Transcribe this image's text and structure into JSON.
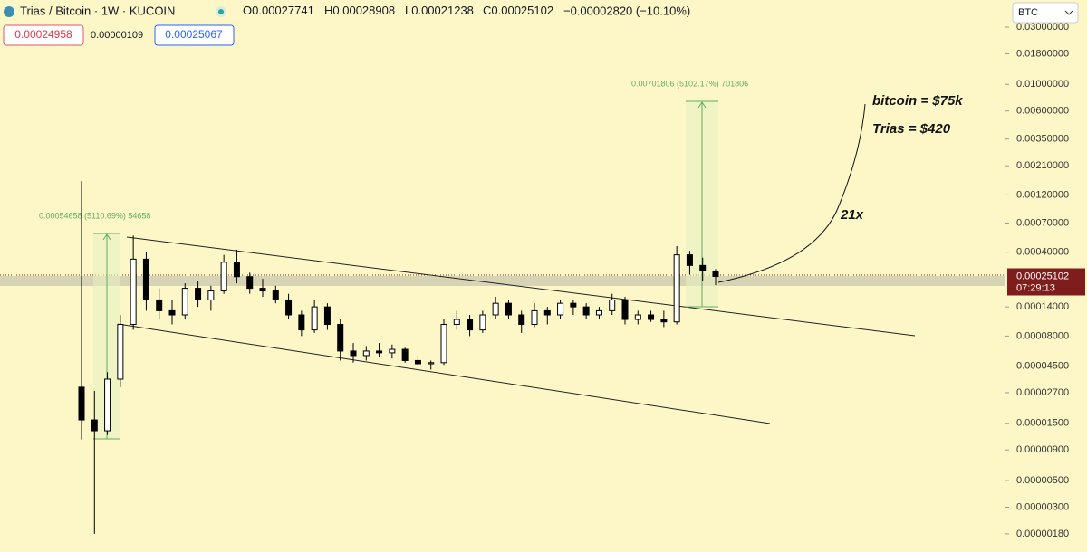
{
  "header": {
    "title": "Trias / Bitcoin · 1W · KUCOIN",
    "ohlc_labels": [
      "O",
      "H",
      "L",
      "C"
    ],
    "change": "−0.00002820 (−10.10%)",
    "bid": "0.00024958",
    "spread": "0.00000109",
    "ask": "0.00025067",
    "currency": "BTC"
  },
  "chart_data": {
    "type": "candlestick",
    "log_scale": true,
    "ylim": [
      1.27e-06,
      0.0505
    ],
    "yticks": [
      {
        "value": 0.03,
        "label": "0.03000000"
      },
      {
        "value": 0.018,
        "label": "0.01800000"
      },
      {
        "value": 0.01,
        "label": "0.01000000"
      },
      {
        "value": 0.006,
        "label": "0.00600000"
      },
      {
        "value": 0.0035,
        "label": "0.00350000"
      },
      {
        "value": 0.0021,
        "label": "0.00210000"
      },
      {
        "value": 0.0012,
        "label": "0.00120000"
      },
      {
        "value": 0.0007,
        "label": "0.00070000"
      },
      {
        "value": 0.0004,
        "label": "0.00040000"
      },
      {
        "value": 0.00014,
        "label": "0.00014000"
      },
      {
        "value": 8e-05,
        "label": "0.00008000"
      },
      {
        "value": 4.5e-05,
        "label": "0.00004500"
      },
      {
        "value": 2.7e-05,
        "label": "0.00002700"
      },
      {
        "value": 1.5e-05,
        "label": "0.00001500"
      },
      {
        "value": 9e-06,
        "label": "0.00000900"
      },
      {
        "value": 5e-06,
        "label": "0.00000500"
      },
      {
        "value": 3e-06,
        "label": "0.00000300"
      },
      {
        "value": 1.8e-06,
        "label": "0.00000180"
      }
    ],
    "open": [
      3e-05,
      1.6e-05,
      1.3e-05,
      3.5e-05,
      0.0001,
      0.00035,
      0.00016,
      0.00013,
      0.00012,
      0.0002,
      0.00016,
      0.00019,
      0.00033,
      0.00025,
      0.0002,
      0.00019,
      0.00016,
      0.00012,
      9e-05,
      0.00014,
      0.0001,
      6e-05,
      5.5e-05,
      6e-05,
      5.8e-05,
      6.2e-05,
      5e-05,
      4.7e-05,
      4.8e-05,
      0.0001,
      0.00011,
      9e-05,
      0.00012,
      0.00015,
      0.00012,
      0.0001,
      0.00013,
      0.00012,
      0.00015,
      0.00014,
      0.00012,
      0.00013,
      0.00016,
      0.00011,
      0.00012,
      0.00011,
      0.000105,
      0.00038,
      0.00031,
      0.00027741
    ],
    "high": [
      0.00156,
      2.8e-05,
      4e-05,
      0.00012,
      0.00055,
      0.0004,
      0.0002,
      0.00016,
      0.00022,
      0.00023,
      0.00021,
      0.00038,
      0.00042,
      0.00027,
      0.00024,
      0.00021,
      0.00018,
      0.00013,
      0.00016,
      0.00015,
      0.00011,
      7e-05,
      6.6e-05,
      7e-05,
      6.8e-05,
      6.4e-05,
      5.5e-05,
      5e-05,
      0.00011,
      0.00013,
      0.00012,
      0.00013,
      0.00017,
      0.00016,
      0.00013,
      0.00015,
      0.00014,
      0.00016,
      0.00016,
      0.00015,
      0.00014,
      0.00018,
      0.00017,
      0.00013,
      0.00013,
      0.00013,
      0.00045,
      0.00041,
      0.00036,
      0.00028908
    ],
    "low": [
      1.1e-05,
      1.8e-06,
      1.2e-05,
      3e-05,
      9e-05,
      0.00013,
      0.00011,
      0.0001,
      0.00011,
      0.00014,
      0.00013,
      0.00018,
      0.00022,
      0.00018,
      0.00017,
      0.00015,
      0.00011,
      8e-05,
      8.5e-05,
      9e-05,
      5e-05,
      4.8e-05,
      5e-05,
      5.3e-05,
      5.2e-05,
      4.8e-05,
      4.5e-05,
      4.2e-05,
      4.6e-05,
      9e-05,
      8e-05,
      8.5e-05,
      0.00011,
      0.00011,
      8.5e-05,
      9.5e-05,
      0.0001,
      0.00011,
      0.00012,
      0.00011,
      0.00011,
      0.00012,
      0.0001,
      0.0001,
      0.000105,
      9.5e-05,
      0.0001,
      0.00026,
      0.00023,
      0.00021238
    ],
    "close": [
      1.6e-05,
      1.3e-05,
      3.5e-05,
      0.0001,
      0.00035,
      0.00016,
      0.00013,
      0.00012,
      0.0002,
      0.00016,
      0.00019,
      0.00033,
      0.00025,
      0.0002,
      0.00019,
      0.00016,
      0.00012,
      9e-05,
      0.00014,
      0.0001,
      6e-05,
      5.5e-05,
      6e-05,
      5.8e-05,
      6.2e-05,
      5e-05,
      4.7e-05,
      4.8e-05,
      0.0001,
      0.00011,
      9e-05,
      0.00012,
      0.00015,
      0.00012,
      0.0001,
      0.00013,
      0.00012,
      0.00015,
      0.00014,
      0.00012,
      0.00013,
      0.00016,
      0.00011,
      0.00012,
      0.00011,
      0.000105,
      0.00038,
      0.00031,
      0.00028,
      0.00025102
    ],
    "up_color": "#ffffff",
    "down_color": "#000000",
    "price_tag": {
      "price": 0.00025102,
      "countdown": "07:29:13",
      "color": "#7f1d1d"
    },
    "annotations": {
      "measure_left": "0.00054658 (5110.69%) 54658",
      "measure_right": "0.00701806 (5102.17%) 701806",
      "bitcoin": "bitcoin = $75k",
      "trias": "Trias = $420",
      "multiple": "21x"
    }
  }
}
